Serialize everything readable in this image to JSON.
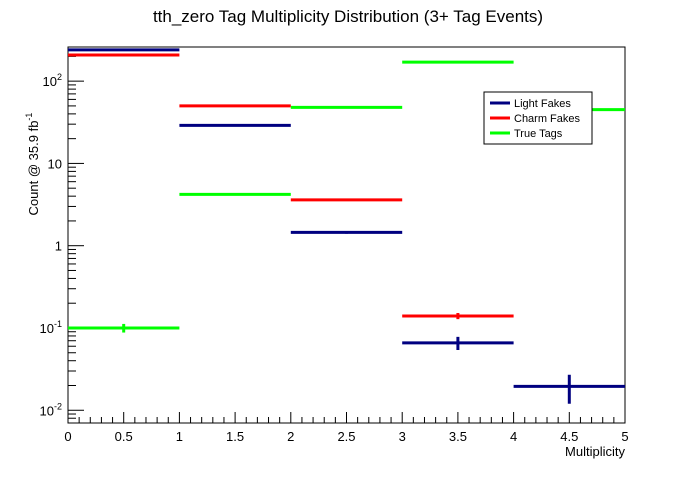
{
  "chart_data": {
    "type": "step",
    "title": "tth_zero Tag Multiplicity Distribution (3+ Tag Events)",
    "xlabel": "Multiplicity",
    "ylabel": "Count @ 35.9 fb",
    "ylabel_exponent": "-1",
    "xlim": [
      0,
      5
    ],
    "ylim": [
      0.007,
      260
    ],
    "yscale": "log",
    "x_ticks": [
      0,
      0.5,
      1,
      1.5,
      2,
      2.5,
      3,
      3.5,
      4,
      4.5,
      5
    ],
    "x_tick_labels": [
      "0",
      "0.5",
      "1",
      "1.5",
      "2",
      "2.5",
      "3",
      "3.5",
      "4",
      "4.5",
      "5"
    ],
    "y_major_ticks": [
      {
        "value": 0.01,
        "base": "10",
        "exp": "-2"
      },
      {
        "value": 0.1,
        "base": "10",
        "exp": "-1"
      },
      {
        "value": 1,
        "base": "1",
        "exp": ""
      },
      {
        "value": 10,
        "base": "10",
        "exp": ""
      },
      {
        "value": 100,
        "base": "10",
        "exp": "2"
      }
    ],
    "bin_edges": [
      0,
      1,
      2,
      3,
      4,
      5
    ],
    "legend_position": "top-right",
    "grid": false,
    "series": [
      {
        "name": "Light Fakes",
        "color": "#000080",
        "values": [
          240,
          29,
          1.45,
          0.066,
          0.0195
        ],
        "errors": [
          null,
          null,
          0.05,
          0.012,
          0.0075
        ]
      },
      {
        "name": "Charm Fakes",
        "color": "#ff0000",
        "values": [
          208,
          50,
          3.6,
          0.14,
          null
        ],
        "errors": [
          null,
          null,
          null,
          0.012,
          null
        ]
      },
      {
        "name": "True Tags",
        "color": "#00ff00",
        "values": [
          0.1,
          4.2,
          48,
          170,
          45
        ],
        "errors": [
          0.012,
          null,
          null,
          null,
          null
        ]
      }
    ]
  }
}
